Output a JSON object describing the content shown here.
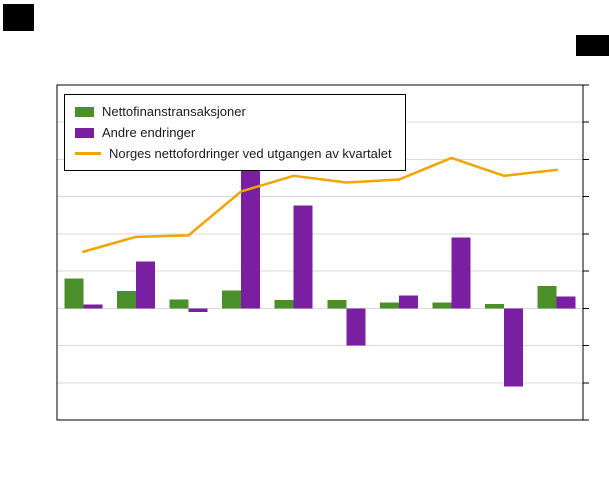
{
  "page": {
    "background": "#ffffff"
  },
  "legend": {
    "items": [
      {
        "label": "Nettofinanstransaksjoner",
        "type": "bar",
        "color": "#4a8f29"
      },
      {
        "label": "Andre endringer",
        "type": "bar",
        "color": "#7b1fa2"
      },
      {
        "label": "Norges nettofordringer ved utgangen av kvartalet",
        "type": "line",
        "color": "#f0a500"
      }
    ]
  },
  "chart_data": {
    "type": "bar",
    "categories": [
      1,
      2,
      3,
      4,
      5,
      6,
      7,
      8,
      9,
      10
    ],
    "x_labels_visible": false,
    "y_labels_visible": false,
    "series": [
      {
        "name": "Nettofinanstransaksjoner",
        "type": "bar",
        "color": "#4a8f29",
        "values": [
          400,
          230,
          120,
          240,
          110,
          110,
          80,
          80,
          55,
          300
        ]
      },
      {
        "name": "Andre endringer",
        "type": "bar",
        "color": "#7b1fa2",
        "values": [
          50,
          630,
          -50,
          1850,
          1380,
          -500,
          175,
          950,
          -1050,
          160
        ]
      },
      {
        "name": "Norges nettofordringer ved utgangen av kvartalet",
        "type": "line",
        "color": "#f0a500",
        "values": [
          760,
          960,
          980,
          1570,
          1780,
          1690,
          1730,
          2020,
          1780,
          1860
        ]
      }
    ],
    "title": "",
    "xlabel": "",
    "ylabel": "",
    "ylim": [
      -1500,
      3000
    ],
    "grid": true,
    "grid_interval": 500,
    "grid_color": "#d9d9d9",
    "frame_color": "#000000",
    "legend_position": "top-left-inside"
  }
}
